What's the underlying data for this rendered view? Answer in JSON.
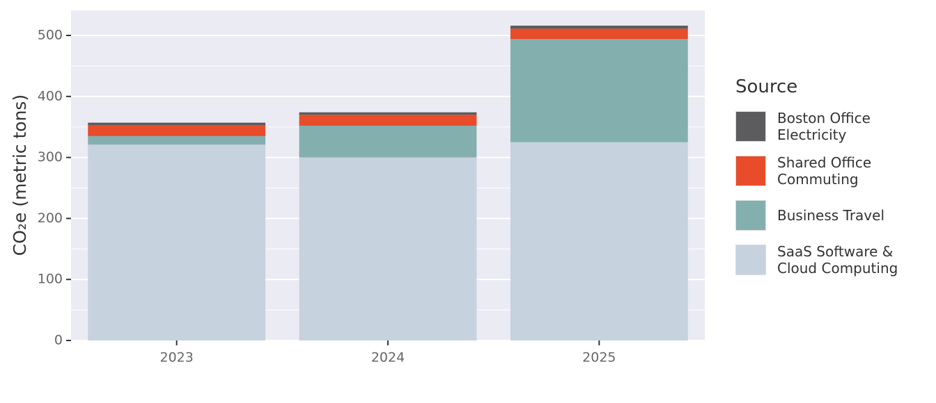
{
  "chart_data": {
    "type": "stacked-bar",
    "y_label": "CO₂e (metric tons)",
    "legend_title": "Source",
    "categories": [
      "2023",
      "2024",
      "2025"
    ],
    "series": [
      {
        "name": "SaaS Software & Cloud Computing",
        "color": "#c6d2de",
        "values": [
          321,
          300,
          325
        ]
      },
      {
        "name": "Business Travel",
        "color": "#84afaf",
        "values": [
          14,
          52,
          169
        ]
      },
      {
        "name": "Shared Office Commuting",
        "color": "#e84c2a",
        "values": [
          18,
          18,
          17
        ]
      },
      {
        "name": "Boston Office Electricity",
        "color": "#5c5c5f",
        "values": [
          4,
          4,
          5
        ]
      }
    ],
    "ylim": [
      0,
      541
    ],
    "yticks": [
      0,
      100,
      200,
      300,
      400,
      500
    ],
    "grid": true,
    "legend_position": "right"
  }
}
